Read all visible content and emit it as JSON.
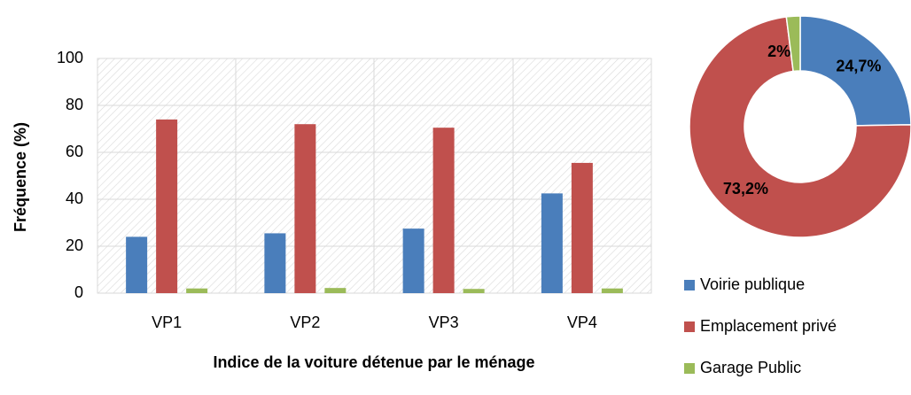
{
  "chart_data": [
    {
      "type": "bar",
      "categories": [
        "VP1",
        "VP2",
        "VP3",
        "VP4"
      ],
      "series": [
        {
          "name": "Voirie publique",
          "color": "#4a7ebb",
          "values": [
            24,
            25.5,
            27.5,
            42.5
          ]
        },
        {
          "name": "Emplacement privé",
          "color": "#c0504d",
          "values": [
            74,
            72,
            70.5,
            55.5
          ]
        },
        {
          "name": "Garage Public",
          "color": "#9bbb59",
          "values": [
            2,
            2.2,
            1.8,
            2
          ]
        }
      ],
      "ylim": [
        0,
        100
      ],
      "yticks": [
        0,
        20,
        40,
        60,
        80,
        100
      ],
      "grid": true,
      "x_label": "Indice de la voiture détenue par le ménage",
      "y_label": "Fréquence (%)"
    },
    {
      "type": "donut",
      "values": [
        24.7,
        73.2,
        2
      ],
      "value_labels": [
        "24,7%",
        "73,2%",
        "2%"
      ],
      "colors": [
        "#4a7ebb",
        "#c0504d",
        "#9bbb59"
      ]
    }
  ]
}
